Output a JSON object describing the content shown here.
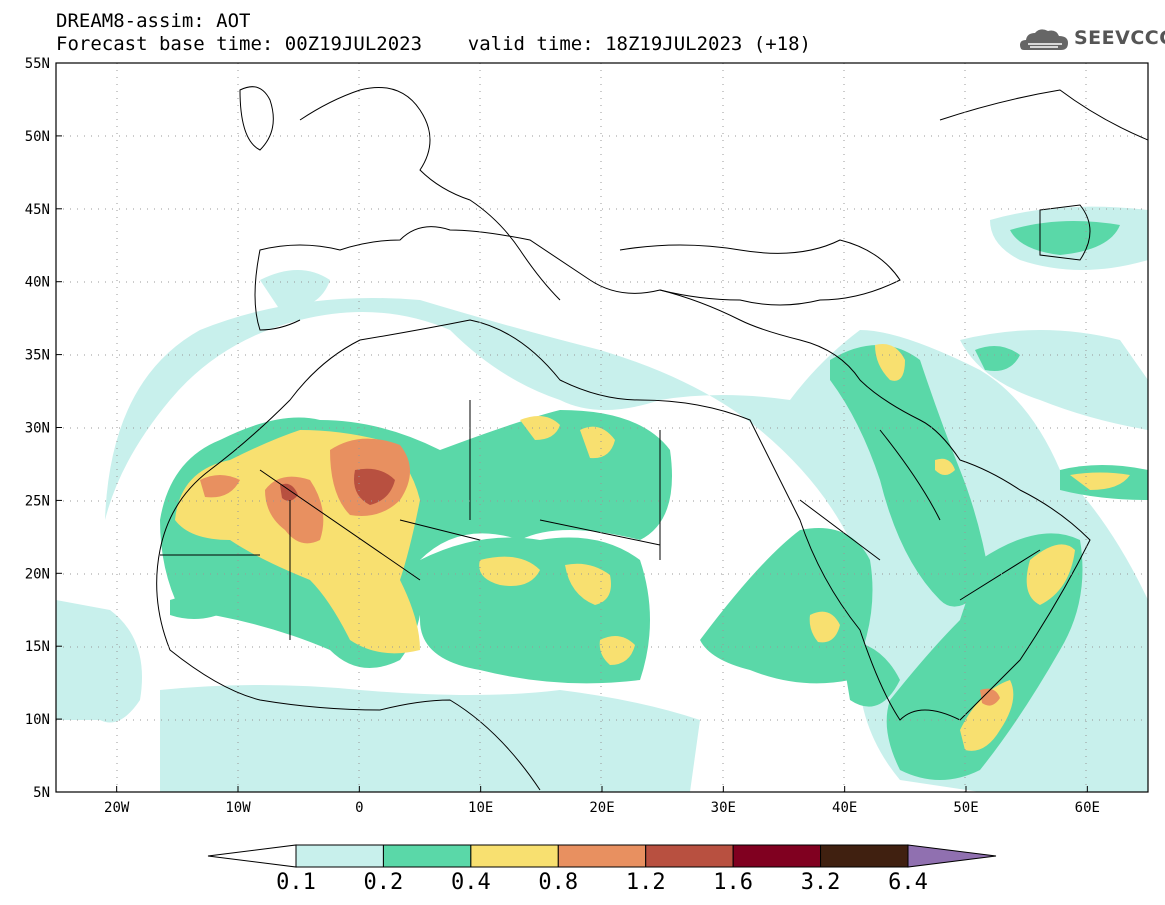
{
  "header": {
    "title": "DREAM8-assim: AOT",
    "forecast_line": "Forecast base time: 00Z19JUL2023    valid time: 18Z19JUL2023 (+18)",
    "logo_text": "SEEVCCC",
    "logo_icon": "cloud-icon"
  },
  "map": {
    "lat_range": [
      5,
      55
    ],
    "lon_range": [
      -25,
      65
    ],
    "lat_labels": [
      "55N",
      "50N",
      "45N",
      "40N",
      "35N",
      "30N",
      "25N",
      "20N",
      "15N",
      "10N",
      "5N"
    ],
    "lat_values": [
      55,
      50,
      45,
      40,
      35,
      30,
      25,
      20,
      15,
      10,
      5
    ],
    "lon_labels": [
      "20W",
      "10W",
      "0",
      "10E",
      "20E",
      "30E",
      "40E",
      "50E",
      "60E"
    ],
    "lon_values": [
      -20,
      -10,
      0,
      10,
      20,
      30,
      40,
      50,
      60
    ],
    "grid": true
  },
  "colorbar": {
    "labels": [
      "0.1",
      "0.2",
      "0.4",
      "0.8",
      "1.2",
      "1.6",
      "3.2",
      "6.4"
    ],
    "colors": [
      "#c8f0ec",
      "#5ad8a8",
      "#f8e070",
      "#e89060",
      "#b85040",
      "#800020",
      "#402010",
      "#9070b0"
    ]
  }
}
